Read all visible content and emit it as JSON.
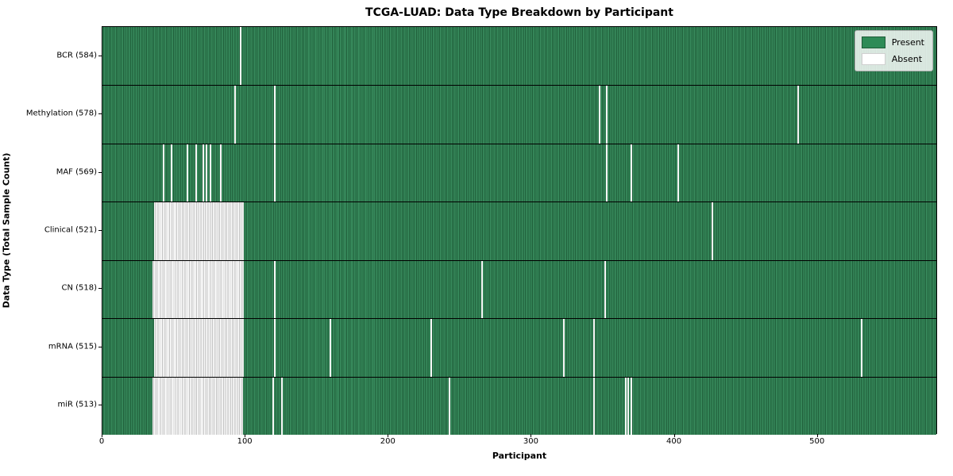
{
  "title": "TCGA-LUAD: Data Type Breakdown by Participant",
  "xlabel": "Participant",
  "ylabel": "Data Type (Total Sample Count)",
  "legend": {
    "present_label": "Present",
    "absent_label": "Absent"
  },
  "colors": {
    "present": "#2e8b57",
    "present_light": "#3a8f60",
    "present_dark": "#1e5c38",
    "absent": "#ffffff",
    "absent_edge": "#bfbfbf",
    "row_separator": "#000000",
    "plot_border": "#000000"
  },
  "chart_data": {
    "type": "heatmap",
    "title": "TCGA-LUAD: Data Type Breakdown by Participant",
    "xlabel": "Participant",
    "ylabel": "Data Type (Total Sample Count)",
    "legend_position": "upper right",
    "grid": false,
    "x_max": 584,
    "x_ticks": [
      0,
      100,
      200,
      300,
      400,
      500
    ],
    "legend": [
      {
        "label": "Present",
        "color": "#2e8b57"
      },
      {
        "label": "Absent",
        "color": "#ffffff"
      }
    ],
    "rows": [
      {
        "label": "BCR (584)",
        "name": "BCR",
        "count": 584,
        "absent_blocks": [],
        "absent_singles": [
          96
        ]
      },
      {
        "label": "Methylation (578)",
        "name": "Methylation",
        "count": 578,
        "absent_blocks": [],
        "absent_singles": [
          92,
          120,
          347,
          352,
          486
        ]
      },
      {
        "label": "MAF (569)",
        "name": "MAF",
        "count": 569,
        "absent_blocks": [],
        "absent_singles": [
          42,
          48,
          59,
          65,
          70,
          72,
          75,
          82,
          120,
          352,
          369,
          402
        ]
      },
      {
        "label": "Clinical (521)",
        "name": "Clinical",
        "count": 521,
        "absent_blocks": [
          [
            36,
            99
          ]
        ],
        "absent_singles": [
          426
        ]
      },
      {
        "label": "CN (518)",
        "name": "CN",
        "count": 518,
        "absent_blocks": [
          [
            35,
            99
          ]
        ],
        "absent_singles": [
          120,
          265,
          351
        ]
      },
      {
        "label": "mRNA (515)",
        "name": "mRNA",
        "count": 515,
        "absent_blocks": [
          [
            36,
            99
          ]
        ],
        "absent_singles": [
          120,
          159,
          229,
          322,
          343,
          530
        ]
      },
      {
        "label": "miR (513)",
        "name": "miR",
        "count": 513,
        "absent_blocks": [
          [
            35,
            98
          ]
        ],
        "absent_singles": [
          119,
          125,
          242,
          343,
          365,
          367,
          369
        ]
      }
    ]
  }
}
